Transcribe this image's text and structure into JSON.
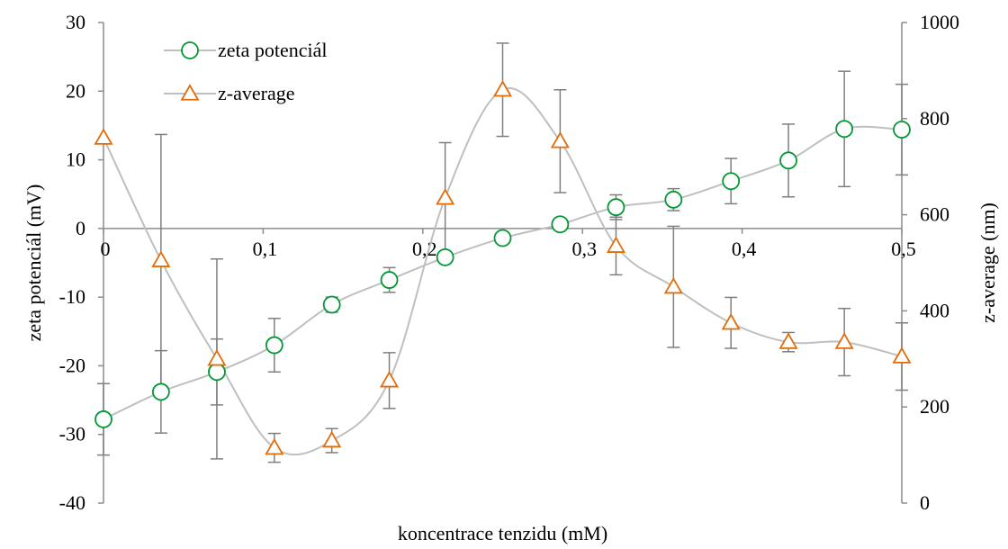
{
  "chart_data": {
    "type": "line",
    "title": "",
    "xlabel": "koncentrace tenzidu (mM)",
    "ylabel_left": "zeta potenciál (mV)",
    "ylabel_right": "z-average (nm)",
    "xlim": [
      0,
      0.5
    ],
    "ylim_left": [
      -40,
      30
    ],
    "ylim_right": [
      0,
      1000
    ],
    "x_ticks": [
      "0",
      "0,1",
      "0,2",
      "0,3",
      "0,4",
      "0,5"
    ],
    "x_tick_values": [
      0,
      0.1,
      0.2,
      0.3,
      0.4,
      0.5
    ],
    "y_left_ticks": [
      "30",
      "20",
      "10",
      "0",
      "-10",
      "-20",
      "-30",
      "-40"
    ],
    "y_left_tick_values": [
      30,
      20,
      10,
      0,
      -10,
      -20,
      -30,
      -40
    ],
    "y_right_ticks": [
      "1000",
      "800",
      "600",
      "400",
      "200",
      "0"
    ],
    "y_right_tick_values": [
      1000,
      800,
      600,
      400,
      200,
      0
    ],
    "grid": false,
    "legend_position": "top-left",
    "series": [
      {
        "name": "zeta potenciál",
        "axis": "left",
        "marker": "circle",
        "color": "#009933",
        "line_color": "#bfbfbf",
        "x": [
          0,
          0.036,
          0.071,
          0.107,
          0.143,
          0.179,
          0.214,
          0.25,
          0.286,
          0.321,
          0.357,
          0.393,
          0.429,
          0.464,
          0.5
        ],
        "values": [
          -27.8,
          -23.8,
          -20.9,
          -17.0,
          -11.1,
          -7.5,
          -4.2,
          -1.4,
          0.6,
          3.1,
          4.2,
          6.9,
          9.9,
          14.5,
          14.4
        ],
        "errors": [
          5.2,
          6.0,
          4.8,
          3.9,
          1.1,
          1.8,
          0.0,
          0.0,
          0.0,
          1.8,
          1.6,
          3.3,
          5.3,
          8.4,
          6.6
        ]
      },
      {
        "name": "z-average",
        "axis": "right",
        "marker": "triangle",
        "color": "#e36c09",
        "line_color": "#bfbfbf",
        "x": [
          0,
          0.036,
          0.071,
          0.107,
          0.143,
          0.179,
          0.214,
          0.25,
          0.286,
          0.321,
          0.357,
          0.393,
          0.429,
          0.464,
          0.5
        ],
        "values": [
          760,
          505,
          300,
          115,
          130,
          255,
          635,
          860,
          753,
          535,
          450,
          375,
          335,
          335,
          305
        ],
        "errors": [
          0,
          262,
          208,
          30,
          25,
          58,
          115,
          97,
          107,
          60,
          126,
          53,
          20,
          70,
          70
        ]
      }
    ]
  }
}
